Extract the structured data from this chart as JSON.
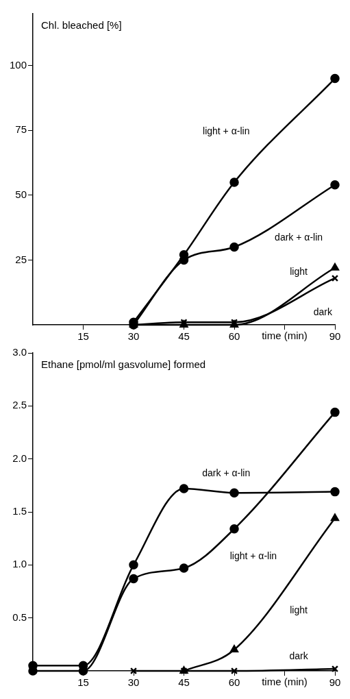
{
  "chart_data": [
    {
      "type": "line",
      "ylabel": "Chl. bleached [%]",
      "xlabel": "time (min)",
      "xlim": [
        0,
        90
      ],
      "xticks": [
        15,
        30,
        45,
        60,
        {
          "value": 75,
          "label": null
        },
        90
      ],
      "ylim": [
        0,
        120
      ],
      "yticks": [
        25,
        50,
        75,
        100
      ],
      "grid": false,
      "legend": false,
      "line_style": "solid",
      "series": [
        {
          "name": "light + α-lin",
          "color": "#000000",
          "marker": "circle",
          "x": [
            30,
            45,
            60,
            90
          ],
          "values": [
            1,
            27,
            55,
            95
          ]
        },
        {
          "name": "dark + α-lin",
          "color": "#000000",
          "marker": "circle",
          "x": [
            30,
            45,
            60,
            90
          ],
          "values": [
            0,
            25,
            30,
            54
          ]
        },
        {
          "name": "light",
          "color": "#000000",
          "marker": "triangle",
          "x": [
            30,
            45,
            60,
            90
          ],
          "values": [
            0,
            0,
            0,
            22
          ]
        },
        {
          "name": "dark",
          "color": "#000000",
          "marker": "cross",
          "x": [
            30,
            45,
            60,
            90
          ],
          "values": [
            0,
            1,
            1,
            18
          ]
        }
      ]
    },
    {
      "type": "line",
      "ylabel": "Ethane [pmol/ml gasvolume] formed",
      "xlabel": "time (min)",
      "xlim": [
        0,
        90
      ],
      "xticks": [
        15,
        30,
        45,
        60,
        {
          "value": 75,
          "label": null
        },
        90
      ],
      "ylim": [
        0,
        3
      ],
      "yticks": [
        0.5,
        {
          "value": 1,
          "label": "1.0"
        },
        1.5,
        {
          "value": 2,
          "label": "2.0"
        },
        2.5,
        {
          "value": 3,
          "label": "3.0"
        }
      ],
      "grid": false,
      "legend": false,
      "line_style": "solid",
      "series": [
        {
          "name": "dark + α-lin",
          "color": "#000000",
          "marker": "circle",
          "x": [
            0,
            15,
            30,
            45,
            60,
            90
          ],
          "values": [
            0.05,
            0.05,
            1.0,
            1.72,
            1.68,
            1.69
          ]
        },
        {
          "name": "light + α-lin",
          "color": "#000000",
          "marker": "circle",
          "x": [
            0,
            15,
            30,
            45,
            60,
            90
          ],
          "values": [
            0,
            0,
            0.87,
            0.97,
            1.34,
            2.44
          ]
        },
        {
          "name": "light",
          "color": "#000000",
          "marker": "triangle",
          "x": [
            45,
            60,
            90
          ],
          "values": [
            0,
            0.2,
            1.44
          ]
        },
        {
          "name": "dark",
          "color": "#000000",
          "marker": "cross",
          "x": [
            30,
            45,
            60,
            90
          ],
          "values": [
            0,
            0,
            0,
            0.02
          ]
        }
      ]
    }
  ]
}
